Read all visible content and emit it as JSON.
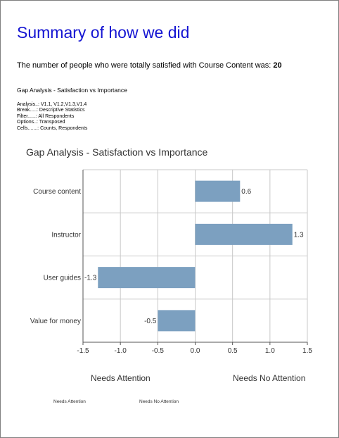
{
  "report": {
    "title": "Summary of how we did",
    "summary_prefix": "The number of people who were totally satisfied with Course Content was:",
    "summary_value": "20",
    "gap_heading": "Gap Analysis - Satisfaction vs Importance",
    "meta": [
      {
        "label": "Analysis..:",
        "value": "V1.1, V1.2,V1.3,V1.4"
      },
      {
        "label": "Break.....:",
        "value": "Descriptive Statistics"
      },
      {
        "label": "Filter......:",
        "value": "All Respondents"
      },
      {
        "label": "Options..:",
        "value": "Transposed"
      },
      {
        "label": "Cells.......:",
        "value": "Counts, Respondents"
      }
    ],
    "needs_attention": "Needs Attention",
    "needs_no_attention": "Needs No Attention",
    "legend_needs_attention": "Needs Attention",
    "legend_needs_no_attention": "Needs No Attention"
  },
  "chart_data": {
    "type": "bar",
    "orientation": "horizontal",
    "title": "Gap Analysis - Satisfaction vs Importance",
    "categories": [
      "Course content",
      "Instructor",
      "User guides",
      "Value for money"
    ],
    "values": [
      0.6,
      1.3,
      -1.3,
      -0.5
    ],
    "value_labels": [
      "0.6",
      "1.3",
      "-1.3",
      "-0.5"
    ],
    "xlim": [
      -1.5,
      1.5
    ],
    "xticks": [
      "-1.5",
      "-1.0",
      "-0.5",
      "0.0",
      "0.5",
      "1.0",
      "1.5"
    ],
    "grid": true,
    "bar_color": "#7ca0c0",
    "grid_color": "#c8c8c8"
  }
}
